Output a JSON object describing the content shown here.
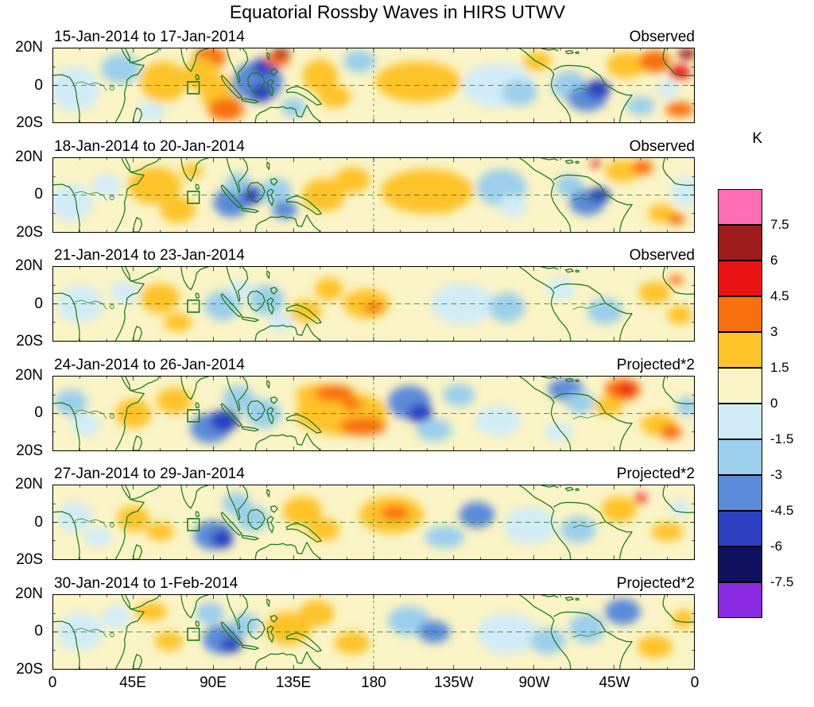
{
  "title": "Equatorial Rossby Waves in HIRS UTWV",
  "colorbar": {
    "label": "K",
    "ticks": [
      "7.5",
      "6",
      "4.5",
      "3",
      "1.5",
      "0",
      "-1.5",
      "-3",
      "-4.5",
      "-6",
      "-7.5"
    ],
    "colors": [
      "#FF6EB4",
      "#9E1B1B",
      "#EA1313",
      "#F9700E",
      "#FFC32A",
      "#FAF4C6",
      "#D2ECF7",
      "#9CCFEC",
      "#5B8AD8",
      "#2B3FC0",
      "#10115E",
      "#8A2BE2"
    ]
  },
  "axes": {
    "x_ticks": [
      "0",
      "45E",
      "90E",
      "135E",
      "180",
      "135W",
      "90W",
      "45W",
      "0"
    ],
    "y_ticks": [
      "20N",
      "0",
      "20S"
    ]
  },
  "palette": {
    "bg": "#FAF4C6",
    "cyan": "#D2ECF7",
    "blue": "#9CCFEC",
    "steel": "#5B8AD8",
    "royal": "#2B3FC0",
    "navy": "#10115E",
    "gold": "#FFC32A",
    "orange": "#F9700E",
    "red": "#EA1313",
    "darkred": "#9E1B1B",
    "pink": "#FF6EB4",
    "violet": "#8A2BE2",
    "coast": "#1A7A1A"
  },
  "chart_data": {
    "type": "heatmap",
    "title": "Equatorial Rossby Waves in HIRS UTWV",
    "units": "K",
    "colorbar_levels": [
      7.5,
      6,
      4.5,
      3,
      1.5,
      0,
      -1.5,
      -3,
      -4.5,
      -6,
      -7.5
    ],
    "lon_ticks": [
      "0",
      "45E",
      "90E",
      "135E",
      "180",
      "135W",
      "90W",
      "45W",
      "0"
    ],
    "lat_ticks": [
      "20N",
      "0",
      "20S"
    ],
    "lat_range_deg": [
      -20,
      20
    ],
    "lon_range_deg": [
      0,
      360
    ],
    "grid": {
      "equator_dashed": true,
      "dateline_dashed": true,
      "region_box_lon": [
        75,
        82
      ],
      "region_box_lat": [
        -4,
        2
      ]
    },
    "anomaly_format": [
      "lon_deg",
      "lat_deg",
      "rx_deg",
      "ry_deg",
      "color_key"
    ],
    "panels": [
      {
        "date_range": "15-Jan-2014 to 17-Jan-2014",
        "source": "Observed",
        "anomalies": [
          [
            12,
            -2,
            14,
            12,
            "cyan"
          ],
          [
            38,
            9,
            11,
            8,
            "blue"
          ],
          [
            62,
            2,
            13,
            11,
            "gold"
          ],
          [
            55,
            -14,
            8,
            5,
            "cyan"
          ],
          [
            88,
            15,
            9,
            6,
            "orange"
          ],
          [
            83,
            6,
            10,
            9,
            "gold"
          ],
          [
            95,
            -5,
            12,
            10,
            "gold"
          ],
          [
            97,
            -13,
            10,
            6,
            "orange"
          ],
          [
            107,
            0,
            7,
            7,
            "blue"
          ],
          [
            115,
            2,
            14,
            11,
            "steel"
          ],
          [
            119,
            10,
            7,
            5,
            "royal"
          ],
          [
            117,
            -4,
            6,
            5,
            "royal"
          ],
          [
            126,
            14,
            7,
            4,
            "orange"
          ],
          [
            128,
            17.5,
            5,
            2.5,
            "darkred"
          ],
          [
            135,
            -12,
            7,
            5,
            "blue"
          ],
          [
            150,
            5,
            10,
            9,
            "gold"
          ],
          [
            158,
            -6,
            9,
            6,
            "gold"
          ],
          [
            172,
            13,
            9,
            6,
            "blue"
          ],
          [
            205,
            2,
            24,
            11,
            "gold"
          ],
          [
            250,
            0,
            20,
            12,
            "cyan"
          ],
          [
            262,
            -4,
            10,
            7,
            "blue"
          ],
          [
            272,
            13,
            8,
            5,
            "gold"
          ],
          [
            290,
            0,
            10,
            8,
            "blue"
          ],
          [
            300,
            -7,
            11,
            7,
            "steel"
          ],
          [
            306,
            -2,
            7,
            5,
            "royal"
          ],
          [
            322,
            11,
            11,
            7,
            "gold"
          ],
          [
            338,
            13,
            9,
            6,
            "orange"
          ],
          [
            352,
            7,
            6,
            4,
            "red"
          ],
          [
            356,
            17,
            5,
            3,
            "darkred"
          ],
          [
            352,
            -13,
            8,
            4,
            "orange"
          ],
          [
            330,
            -11,
            8,
            5,
            "blue"
          ],
          [
            345,
            -2,
            6,
            5,
            "cyan"
          ]
        ]
      },
      {
        "date_range": "18-Jan-2014 to 20-Jan-2014",
        "source": "Observed",
        "anomalies": [
          [
            10,
            -4,
            12,
            10,
            "cyan"
          ],
          [
            30,
            5,
            8,
            6,
            "cyan"
          ],
          [
            57,
            5,
            15,
            10,
            "gold"
          ],
          [
            70,
            -8,
            10,
            7,
            "gold"
          ],
          [
            78,
            13,
            6,
            4,
            "gold"
          ],
          [
            100,
            -4,
            10,
            8,
            "steel"
          ],
          [
            104,
            6,
            7,
            6,
            "blue"
          ],
          [
            112,
            0,
            6,
            5,
            "royal"
          ],
          [
            125,
            2,
            9,
            7,
            "blue"
          ],
          [
            130,
            -8,
            7,
            5,
            "steel"
          ],
          [
            152,
            0,
            12,
            9,
            "gold"
          ],
          [
            168,
            8,
            10,
            7,
            "gold"
          ],
          [
            210,
            2,
            26,
            12,
            "gold"
          ],
          [
            218,
            -4,
            10,
            6,
            "gold"
          ],
          [
            252,
            4,
            14,
            10,
            "blue"
          ],
          [
            258,
            -6,
            8,
            6,
            "cyan"
          ],
          [
            290,
            5,
            8,
            6,
            "blue"
          ],
          [
            300,
            -4,
            10,
            7,
            "steel"
          ],
          [
            307,
            0,
            6,
            4,
            "royal"
          ],
          [
            305,
            17,
            3,
            2,
            "red"
          ],
          [
            320,
            13,
            10,
            6,
            "gold"
          ],
          [
            331,
            15,
            6,
            4,
            "orange"
          ],
          [
            342,
            -10,
            8,
            5,
            "gold"
          ],
          [
            350,
            -13,
            5,
            3,
            "orange"
          ],
          [
            355,
            2,
            8,
            8,
            "cyan"
          ]
        ]
      },
      {
        "date_range": "21-Jan-2014 to 23-Jan-2014",
        "source": "Observed",
        "anomalies": [
          [
            15,
            0,
            13,
            10,
            "cyan"
          ],
          [
            40,
            6,
            8,
            6,
            "cyan"
          ],
          [
            60,
            3,
            11,
            8,
            "gold"
          ],
          [
            70,
            -10,
            8,
            5,
            "gold"
          ],
          [
            95,
            -1,
            10,
            8,
            "blue"
          ],
          [
            105,
            8,
            7,
            5,
            "cyan"
          ],
          [
            120,
            2,
            10,
            8,
            "blue"
          ],
          [
            128,
            -10,
            7,
            5,
            "cyan"
          ],
          [
            142,
            -4,
            9,
            6,
            "gold"
          ],
          [
            155,
            8,
            8,
            6,
            "gold"
          ],
          [
            176,
            0,
            13,
            8,
            "gold"
          ],
          [
            180,
            -2,
            5,
            3,
            "orange"
          ],
          [
            230,
            0,
            18,
            11,
            "cyan"
          ],
          [
            255,
            -2,
            10,
            8,
            "blue"
          ],
          [
            285,
            8,
            8,
            6,
            "cyan"
          ],
          [
            310,
            -4,
            10,
            7,
            "blue"
          ],
          [
            338,
            6,
            9,
            6,
            "gold"
          ],
          [
            350,
            13,
            4,
            2.5,
            "orange"
          ],
          [
            352,
            -6,
            7,
            5,
            "gold"
          ]
        ]
      },
      {
        "date_range": "24-Jan-2014 to 26-Jan-2014",
        "source": "Projected*2",
        "anomalies": [
          [
            10,
            6,
            9,
            7,
            "blue"
          ],
          [
            18,
            -6,
            8,
            6,
            "cyan"
          ],
          [
            45,
            0,
            10,
            8,
            "gold"
          ],
          [
            68,
            7,
            10,
            7,
            "gold"
          ],
          [
            88,
            -8,
            11,
            8,
            "steel"
          ],
          [
            96,
            -4,
            8,
            6,
            "royal"
          ],
          [
            104,
            8,
            9,
            7,
            "blue"
          ],
          [
            118,
            0,
            10,
            8,
            "blue"
          ],
          [
            150,
            10,
            14,
            6,
            "gold"
          ],
          [
            162,
            0,
            26,
            12,
            "gold"
          ],
          [
            158,
            11,
            11,
            4.5,
            "orange"
          ],
          [
            174,
            -7,
            13,
            5,
            "orange"
          ],
          [
            168,
            5,
            6,
            3,
            "orange"
          ],
          [
            200,
            6,
            12,
            9,
            "steel"
          ],
          [
            206,
            0,
            7,
            5,
            "royal"
          ],
          [
            214,
            -9,
            10,
            6,
            "blue"
          ],
          [
            228,
            10,
            9,
            6,
            "blue"
          ],
          [
            250,
            -4,
            13,
            8,
            "cyan"
          ],
          [
            288,
            13,
            10,
            6,
            "steel"
          ],
          [
            296,
            6,
            8,
            6,
            "blue"
          ],
          [
            284,
            -10,
            8,
            5,
            "cyan"
          ],
          [
            320,
            13,
            10,
            6,
            "orange"
          ],
          [
            322,
            13,
            5,
            3,
            "red"
          ],
          [
            312,
            4,
            8,
            5,
            "gold"
          ],
          [
            340,
            -6,
            10,
            6,
            "gold"
          ],
          [
            347,
            -10,
            6,
            4,
            "orange"
          ],
          [
            356,
            4,
            6,
            5,
            "blue"
          ]
        ]
      },
      {
        "date_range": "27-Jan-2014 to 29-Jan-2014",
        "source": "Projected*2",
        "anomalies": [
          [
            12,
            3,
            10,
            8,
            "cyan"
          ],
          [
            25,
            -8,
            8,
            5,
            "cyan"
          ],
          [
            45,
            2,
            9,
            7,
            "gold"
          ],
          [
            60,
            -5,
            8,
            5,
            "gold"
          ],
          [
            90,
            -7,
            11,
            8,
            "steel"
          ],
          [
            95,
            -9,
            6,
            5,
            "royal"
          ],
          [
            103,
            10,
            8,
            6,
            "blue"
          ],
          [
            112,
            2,
            9,
            7,
            "blue"
          ],
          [
            140,
            6,
            11,
            8,
            "gold"
          ],
          [
            152,
            -4,
            9,
            6,
            "gold"
          ],
          [
            190,
            4,
            18,
            10,
            "gold"
          ],
          [
            192,
            5,
            8,
            4,
            "orange"
          ],
          [
            220,
            -8,
            11,
            6,
            "blue"
          ],
          [
            238,
            4,
            10,
            7,
            "steel"
          ],
          [
            268,
            -2,
            15,
            10,
            "cyan"
          ],
          [
            295,
            -4,
            10,
            7,
            "blue"
          ],
          [
            318,
            7,
            10,
            7,
            "gold"
          ],
          [
            330,
            13,
            3.5,
            2.5,
            "red"
          ],
          [
            345,
            -5,
            9,
            5,
            "gold"
          ],
          [
            352,
            8,
            6,
            4,
            "cyan"
          ]
        ]
      },
      {
        "date_range": "30-Jan-2014 to 1-Feb-2014",
        "source": "Projected*2",
        "anomalies": [
          [
            15,
            0,
            13,
            10,
            "cyan"
          ],
          [
            35,
            8,
            8,
            6,
            "cyan"
          ],
          [
            55,
            11,
            9,
            5,
            "gold"
          ],
          [
            65,
            -5,
            8,
            5,
            "gold"
          ],
          [
            88,
            10,
            8,
            6,
            "blue"
          ],
          [
            95,
            -4,
            11,
            8,
            "steel"
          ],
          [
            100,
            -7,
            6,
            4,
            "royal"
          ],
          [
            108,
            4,
            8,
            6,
            "blue"
          ],
          [
            132,
            2,
            13,
            9,
            "gold"
          ],
          [
            148,
            10,
            10,
            7,
            "gold"
          ],
          [
            168,
            -6,
            10,
            6,
            "gold"
          ],
          [
            200,
            6,
            12,
            8,
            "blue"
          ],
          [
            214,
            0,
            9,
            6,
            "steel"
          ],
          [
            255,
            -1,
            17,
            11,
            "cyan"
          ],
          [
            278,
            -5,
            10,
            7,
            "blue"
          ],
          [
            300,
            2,
            10,
            8,
            "blue"
          ],
          [
            320,
            11,
            10,
            7,
            "steel"
          ],
          [
            338,
            -8,
            10,
            6,
            "gold"
          ],
          [
            354,
            7,
            6,
            5,
            "gold"
          ]
        ]
      }
    ]
  }
}
